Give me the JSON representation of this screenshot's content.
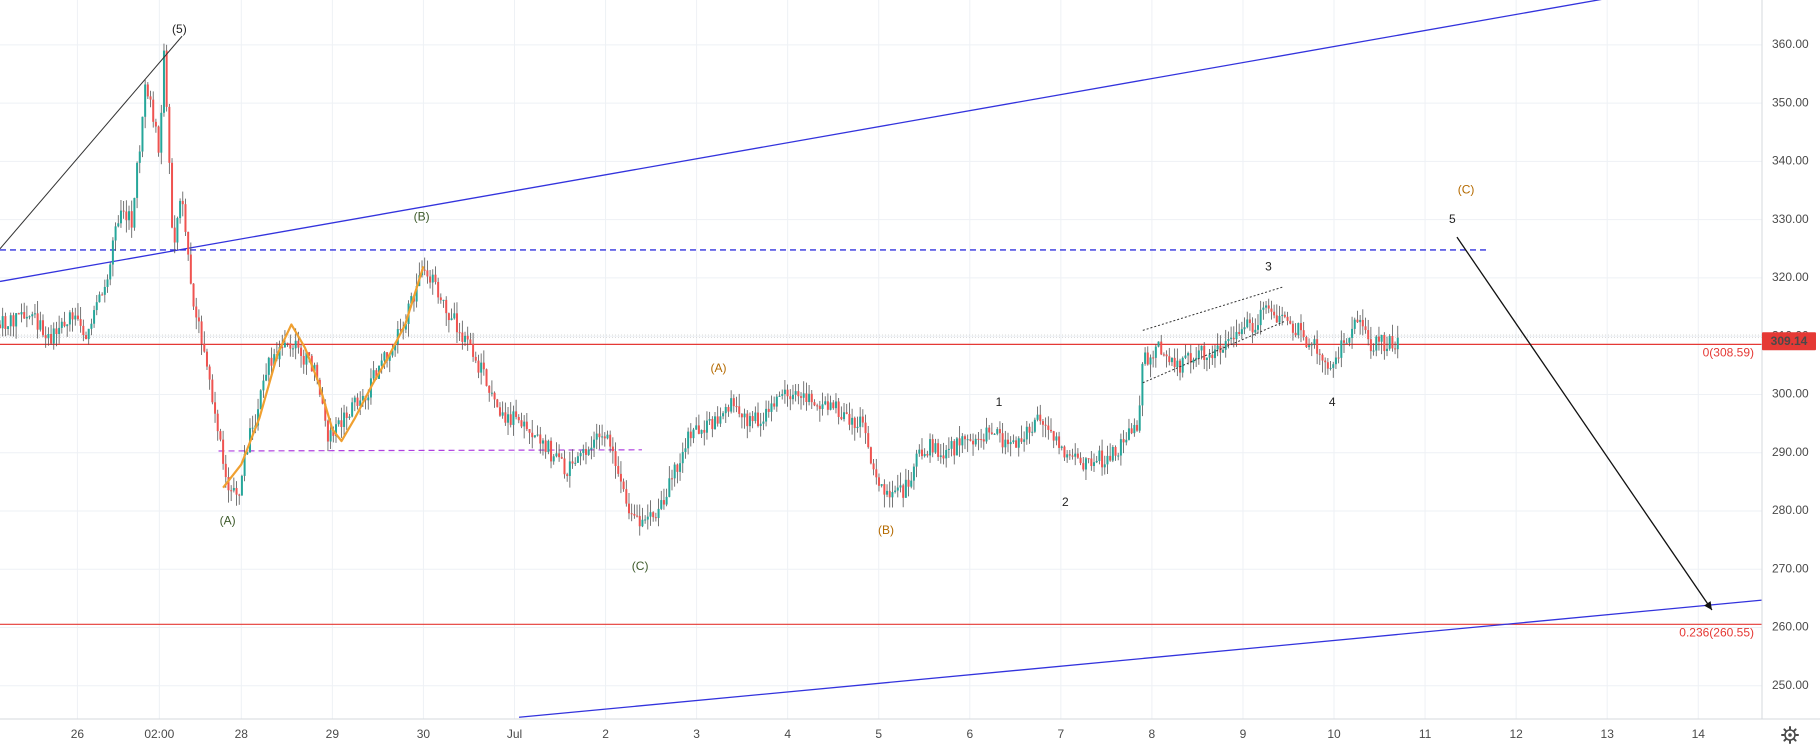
{
  "colors": {
    "background": "#ffffff",
    "grid": "#eef1f5",
    "candle": "#4a4a4a",
    "candle_up": "#26a69a",
    "candle_down": "#ef5350",
    "channel": "#3333dd",
    "fib": "#e53935",
    "wave_green": "#3d5a2a",
    "wave_orange": "#b46a00",
    "wave_black": "#222222",
    "orange_path": "#f0a030",
    "purple_dash": "#b040e0",
    "price_tag": "#e53935"
  },
  "icons": {
    "settings": "gear-icon"
  },
  "chart_data": {
    "type": "candlestick",
    "x_labels": [
      {
        "x": -0.2,
        "label": "26"
      },
      {
        "x": 0.7,
        "label": "02:00"
      },
      {
        "x": 1.6,
        "label": "28"
      },
      {
        "x": 2.6,
        "label": "29"
      },
      {
        "x": 3.6,
        "label": "30"
      },
      {
        "x": 4.6,
        "label": "Jul"
      },
      {
        "x": 5.6,
        "label": "2"
      },
      {
        "x": 6.6,
        "label": "3"
      },
      {
        "x": 7.6,
        "label": "4"
      },
      {
        "x": 8.6,
        "label": "5"
      },
      {
        "x": 9.6,
        "label": "6"
      },
      {
        "x": 10.6,
        "label": "7"
      },
      {
        "x": 11.6,
        "label": "8"
      },
      {
        "x": 12.6,
        "label": "9"
      },
      {
        "x": 13.6,
        "label": "10"
      },
      {
        "x": 14.6,
        "label": "11"
      },
      {
        "x": 15.6,
        "label": "12"
      },
      {
        "x": 16.6,
        "label": "13"
      },
      {
        "x": 17.6,
        "label": "14"
      }
    ],
    "x_range": [
      -1.05,
      18.3
    ],
    "y_ticks": [
      250,
      260,
      270,
      280,
      290,
      300,
      310,
      320,
      330,
      340,
      350,
      360
    ],
    "y_tick_labels": [
      "250.00",
      "260.00",
      "270.00",
      "280.00",
      "290.00",
      "300.00",
      "310.00",
      "320.00",
      "330.00",
      "340.00",
      "350.00",
      "360.00"
    ],
    "ylim": [
      244.3,
      367.7
    ],
    "price_anchors": [
      [
        -1.05,
        312
      ],
      [
        -0.7,
        314
      ],
      [
        -0.5,
        309
      ],
      [
        -0.3,
        313
      ],
      [
        -0.1,
        311
      ],
      [
        0.1,
        318
      ],
      [
        0.25,
        331
      ],
      [
        0.4,
        330
      ],
      [
        0.55,
        353
      ],
      [
        0.7,
        342
      ],
      [
        0.75,
        360
      ],
      [
        0.85,
        325
      ],
      [
        0.95,
        335
      ],
      [
        1.05,
        318
      ],
      [
        1.15,
        310
      ],
      [
        1.3,
        298
      ],
      [
        1.45,
        284
      ],
      [
        1.55,
        282
      ],
      [
        1.7,
        293
      ],
      [
        1.9,
        305
      ],
      [
        2.1,
        309
      ],
      [
        2.4,
        305
      ],
      [
        2.55,
        293
      ],
      [
        2.75,
        297
      ],
      [
        3.0,
        301
      ],
      [
        3.2,
        307
      ],
      [
        3.4,
        313
      ],
      [
        3.6,
        322
      ],
      [
        3.75,
        318
      ],
      [
        3.95,
        312
      ],
      [
        4.1,
        308
      ],
      [
        4.3,
        302
      ],
      [
        4.5,
        296
      ],
      [
        4.7,
        296
      ],
      [
        5.0,
        290
      ],
      [
        5.2,
        287
      ],
      [
        5.4,
        290
      ],
      [
        5.6,
        294
      ],
      [
        5.85,
        280
      ],
      [
        6.0,
        277
      ],
      [
        6.25,
        282
      ],
      [
        6.5,
        292
      ],
      [
        6.8,
        296
      ],
      [
        7.0,
        299
      ],
      [
        7.2,
        295
      ],
      [
        7.5,
        299
      ],
      [
        7.8,
        300
      ],
      [
        8.1,
        298
      ],
      [
        8.4,
        295
      ],
      [
        8.65,
        283
      ],
      [
        8.85,
        283
      ],
      [
        9.1,
        291
      ],
      [
        9.35,
        290
      ],
      [
        9.65,
        293
      ],
      [
        9.9,
        293
      ],
      [
        10.15,
        291
      ],
      [
        10.35,
        296
      ],
      [
        10.65,
        289
      ],
      [
        10.9,
        288
      ],
      [
        11.2,
        290
      ],
      [
        11.35,
        293
      ],
      [
        11.45,
        295
      ],
      [
        11.5,
        306
      ],
      [
        11.7,
        308
      ],
      [
        11.9,
        305
      ],
      [
        12.15,
        307
      ],
      [
        12.4,
        308
      ],
      [
        12.7,
        312
      ],
      [
        12.85,
        314
      ],
      [
        13.0,
        313
      ],
      [
        13.2,
        311
      ],
      [
        13.4,
        308
      ],
      [
        13.55,
        305
      ],
      [
        13.7,
        309
      ],
      [
        13.85,
        312
      ],
      [
        14.0,
        309
      ],
      [
        14.15,
        309
      ],
      [
        14.3,
        309
      ]
    ],
    "channel_upper": {
      "from": [
        -1.05,
        319.4
      ],
      "to": [
        16.9,
        368.8
      ]
    },
    "channel_lower": {
      "from": [
        4.65,
        244.6
      ],
      "to": [
        18.3,
        264.7
      ]
    },
    "dashed_level": {
      "from": [
        -1.05,
        324.8
      ],
      "to": [
        15.3,
        324.8
      ]
    },
    "purple_dashed": {
      "from": [
        1.35,
        290.3
      ],
      "to": [
        6.0,
        290.5
      ]
    },
    "wave5_line": {
      "from": [
        -1.05,
        325
      ],
      "to": [
        0.95,
        361.5
      ]
    },
    "projection_arrow": {
      "from": [
        14.95,
        327
      ],
      "to": [
        17.75,
        263
      ]
    },
    "rising_channel": {
      "upper": {
        "from": [
          11.5,
          311
        ],
        "to": [
          13.05,
          318.5
        ]
      },
      "lower": {
        "from": [
          11.5,
          302
        ],
        "to": [
          13.05,
          312.5
        ]
      }
    },
    "orange_path": [
      [
        1.4,
        284
      ],
      [
        1.6,
        288
      ],
      [
        1.8,
        296
      ],
      [
        2.0,
        307
      ],
      [
        2.15,
        312
      ],
      [
        2.3,
        308
      ],
      [
        2.45,
        302
      ],
      [
        2.6,
        294
      ],
      [
        2.7,
        292
      ],
      [
        2.85,
        296
      ],
      [
        3.05,
        302
      ],
      [
        3.2,
        306
      ],
      [
        3.4,
        312
      ],
      [
        3.6,
        322
      ]
    ],
    "fib_levels": [
      {
        "value": 308.59,
        "label": "0(308.59)"
      },
      {
        "value": 260.55,
        "label": "0.236(260.55)"
      }
    ],
    "current_price": {
      "value": 309.14,
      "label": "309.14"
    },
    "wave_labels": [
      {
        "text": "(5)",
        "x": 0.92,
        "y": 362.6,
        "color": "black"
      },
      {
        "text": "(B)",
        "x": 3.58,
        "y": 330.4,
        "color": "green"
      },
      {
        "text": "(A)",
        "x": 1.45,
        "y": 278.2,
        "color": "green"
      },
      {
        "text": "(C)",
        "x": 5.98,
        "y": 270.4,
        "color": "green"
      },
      {
        "text": "(A)",
        "x": 6.84,
        "y": 304.4,
        "color": "orange"
      },
      {
        "text": "(B)",
        "x": 8.68,
        "y": 276.6,
        "color": "orange"
      },
      {
        "text": "(C)",
        "x": 15.05,
        "y": 335.0,
        "color": "orange"
      },
      {
        "text": "1",
        "x": 9.92,
        "y": 298.6,
        "color": "black"
      },
      {
        "text": "2",
        "x": 10.65,
        "y": 281.4,
        "color": "black"
      },
      {
        "text": "3",
        "x": 12.88,
        "y": 321.8,
        "color": "black"
      },
      {
        "text": "4",
        "x": 13.58,
        "y": 298.6,
        "color": "black"
      },
      {
        "text": "5",
        "x": 14.9,
        "y": 330.0,
        "color": "black"
      }
    ]
  }
}
